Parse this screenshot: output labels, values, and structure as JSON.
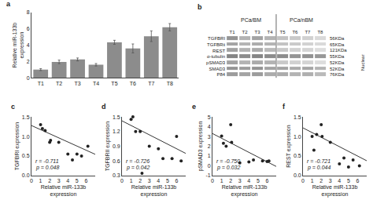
{
  "chart_data": [
    {
      "type": "bar",
      "title": "a",
      "categories": [
        "T1",
        "T2",
        "T3",
        "T4",
        "T5",
        "T6",
        "T7",
        "T8"
      ],
      "values": [
        1.0,
        1.95,
        2.25,
        1.6,
        4.35,
        3.6,
        5.1,
        6.2
      ],
      "errors": [
        0.12,
        0.22,
        0.18,
        0.15,
        0.25,
        0.55,
        0.65,
        0.45
      ],
      "color": "#8c8c8c",
      "ylabel": "Relative miR-133b\nexpression",
      "ylim": [
        0,
        8
      ],
      "yticks": [
        0,
        2,
        4,
        6,
        8
      ],
      "grid": false
    },
    {
      "type": "heatmap",
      "title": "b",
      "categories": [
        "T1",
        "T2",
        "T3",
        "T4",
        "T5",
        "T6",
        "T7",
        "T8"
      ],
      "row_labels": [
        "TGFBRI",
        "TGFBRii",
        "REST",
        "α-tubulin",
        "pSMAD3",
        "SMAD3",
        "P84"
      ],
      "size_labels": [
        "56KDa",
        "65KDa",
        "121KDa",
        "55KDa",
        "52KDa",
        "52KDa",
        "76KDa"
      ],
      "groups": [
        {
          "name": "PCa/BM",
          "cells": [
            [
              0.7,
              0.5,
              0.6,
              0.5
            ],
            [
              0.6,
              0.5,
              0.55,
              0.5
            ],
            [
              0.6,
              0.5,
              0.55,
              0.45
            ],
            [
              0.8,
              0.75,
              0.8,
              0.75
            ],
            [
              0.6,
              0.5,
              0.55,
              0.5
            ],
            [
              0.7,
              0.65,
              0.7,
              0.6
            ],
            [
              0.65,
              0.6,
              0.65,
              0.55
            ]
          ]
        },
        {
          "name": "PCa/nBM",
          "cells": [
            [
              0.4,
              0.35,
              0.3,
              0.25
            ],
            [
              0.4,
              0.35,
              0.3,
              0.25
            ],
            [
              0.35,
              0.3,
              0.28,
              0.22
            ],
            [
              0.75,
              0.7,
              0.72,
              0.68
            ],
            [
              0.35,
              0.3,
              0.28,
              0.22
            ],
            [
              0.6,
              0.55,
              0.58,
              0.5
            ],
            [
              0.55,
              0.5,
              0.52,
              0.45
            ]
          ]
        }
      ],
      "side_label": "Nuclear"
    },
    {
      "type": "scatter",
      "title": "c",
      "x": [
        1.0,
        1.2,
        1.5,
        2.0,
        2.1,
        3.0,
        4.0,
        4.5,
        5.0,
        5.5,
        6.2
      ],
      "values": [
        1.3,
        1.2,
        1.15,
        0.85,
        0.9,
        0.85,
        0.55,
        0.4,
        0.55,
        0.5,
        0.75
      ],
      "color": "#222222",
      "fit": {
        "x": [
          0,
          7
        ],
        "values": [
          1.28,
          0.545
        ],
        "color": "#333333"
      },
      "xlabel": "Relative miR-133b\nexpression",
      "ylabel": "TGFBRI expression",
      "xlim": [
        0,
        7
      ],
      "ylim": [
        0.0,
        1.5
      ],
      "xticks": [
        0,
        1,
        2,
        3,
        4,
        5,
        6
      ],
      "yticks": [
        {
          "value": 0,
          "label": "0.0"
        },
        0.5,
        {
          "value": 1,
          "label": "1.0"
        },
        1.5
      ],
      "annotations": [
        "r = -0.711",
        "p = 0.048"
      ],
      "grid": false
    },
    {
      "type": "scatter",
      "title": "d",
      "x": [
        1.0,
        1.2,
        1.5,
        2.0,
        2.2,
        3.0,
        4.0,
        4.5,
        5.5,
        6.0,
        6.5
      ],
      "values": [
        1.45,
        1.5,
        1.2,
        1.2,
        0.35,
        0.9,
        0.85,
        0.65,
        0.65,
        1.1,
        0.6
      ],
      "color": "#222222",
      "fit": {
        "x": [
          0,
          7
        ],
        "values": [
          1.42,
          0.755
        ],
        "color": "#333333"
      },
      "xlabel": "Relative miR-133b\nexpression",
      "ylabel": "TGFBRII expression",
      "xlim": [
        0,
        7
      ],
      "ylim": [
        0.3,
        1.5
      ],
      "xticks": [
        0,
        1,
        2,
        3,
        4,
        5,
        6
      ],
      "yticks": [
        0.3,
        0.6,
        0.9,
        1.2,
        1.5
      ],
      "annotations": [
        "r = -0.726",
        "p = 0.042"
      ],
      "grid": false
    },
    {
      "type": "scatter",
      "title": "e",
      "x": [
        1.0,
        1.2,
        1.5,
        2.0,
        2.1,
        3.0,
        4.0,
        4.5,
        5.5,
        6.0,
        6.2
      ],
      "values": [
        3.05,
        2.3,
        2.0,
        4.2,
        2.4,
        0.3,
        0.4,
        0.6,
        0.5,
        0.45,
        0.5
      ],
      "color": "#222222",
      "fit": {
        "x": [
          0,
          7
        ],
        "values": [
          3.3,
          -0.06
        ],
        "color": "#333333"
      },
      "xlabel": "Relative miR-133b\nexpression",
      "ylabel": "pSMAD3 expression",
      "xlim": [
        0,
        7
      ],
      "ylim": [
        -1,
        5
      ],
      "xticks": [
        0,
        1,
        2,
        3,
        4,
        5,
        6
      ],
      "yticks": [
        -1,
        0,
        1,
        2,
        3,
        4,
        5
      ],
      "annotations": [
        "r = -0.750",
        "p = 0.032"
      ],
      "grid": false
    },
    {
      "type": "scatter",
      "title": "f",
      "x": [
        1.0,
        1.2,
        1.5,
        2.0,
        2.1,
        3.0,
        4.0,
        4.5,
        5.0,
        5.5,
        6.2
      ],
      "values": [
        1.0,
        0.65,
        1.05,
        1.3,
        1.0,
        0.85,
        0.3,
        0.45,
        0.22,
        0.4,
        0.25
      ],
      "color": "#222222",
      "fit": {
        "x": [
          0,
          7
        ],
        "values": [
          1.22,
          0.38
        ],
        "color": "#333333"
      },
      "xlabel": "Relative miR-133b\nexpression",
      "ylabel": "REST expression",
      "xlim": [
        0,
        7
      ],
      "ylim": [
        0.0,
        1.5
      ],
      "xticks": [
        0,
        1,
        2,
        3,
        4,
        5,
        6
      ],
      "yticks": [
        {
          "value": 0,
          "label": "0.0"
        },
        0.5,
        {
          "value": 1,
          "label": "1.0"
        },
        1.5
      ],
      "annotations": [
        "r = -0.721",
        "p = 0.044"
      ],
      "grid": false
    }
  ]
}
